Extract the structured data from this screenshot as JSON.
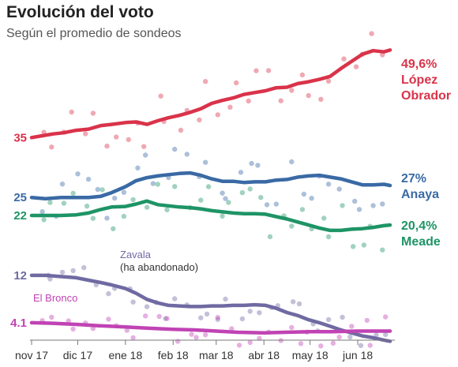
{
  "chart_data": {
    "type": "line",
    "title": "Evolución del voto",
    "subtitle": "Según el promedio de sondeos",
    "x_ticks": [
      "nov 17",
      "dic 17",
      "ene 18",
      "feb 18",
      "mar 18",
      "abr 18",
      "may 18",
      "jun 18"
    ],
    "x_domain": [
      "2017-11-01",
      "2018-06-22"
    ],
    "y_domain": [
      0,
      54
    ],
    "grid": false,
    "series": [
      {
        "name": "López Obrador",
        "color": "#d9334a",
        "start_label": "35",
        "end_value_label": "49,6%",
        "end_name_lines": [
          "López",
          "Obrador"
        ],
        "x": [
          "2017-11-01",
          "2017-11-08",
          "2017-11-15",
          "2017-11-22",
          "2017-11-30",
          "2017-12-08",
          "2017-12-16",
          "2017-12-23",
          "2018-01-01",
          "2018-01-08",
          "2018-01-15",
          "2018-01-22",
          "2018-01-29",
          "2018-02-05",
          "2018-02-12",
          "2018-02-19",
          "2018-02-26",
          "2018-03-05",
          "2018-03-12",
          "2018-03-19",
          "2018-03-26",
          "2018-04-02",
          "2018-04-09",
          "2018-04-16",
          "2018-04-23",
          "2018-04-30",
          "2018-05-07",
          "2018-05-14",
          "2018-05-21",
          "2018-05-28",
          "2018-06-04",
          "2018-06-11",
          "2018-06-18",
          "2018-06-22"
        ],
        "values": [
          35,
          35.3,
          35.6,
          35.8,
          36.2,
          36.4,
          37,
          37.2,
          37.5,
          37.6,
          37.2,
          37.8,
          38.3,
          38.7,
          39.2,
          39.8,
          40.7,
          41.2,
          41.6,
          42.2,
          42.5,
          42.8,
          43.3,
          43.4,
          44,
          44.3,
          44.7,
          45.2,
          46.5,
          47.7,
          48.9,
          49.5,
          49.3,
          49.6
        ]
      },
      {
        "name": "Anaya",
        "color": "#3a6aa5",
        "start_label": "25",
        "end_value_label": "27%",
        "end_name_lines": [
          "Anaya"
        ],
        "x": [
          "2017-11-01",
          "2017-11-10",
          "2017-11-20",
          "2017-11-30",
          "2017-12-08",
          "2017-12-16",
          "2017-12-23",
          "2018-01-01",
          "2018-01-08",
          "2018-01-15",
          "2018-01-22",
          "2018-01-29",
          "2018-02-05",
          "2018-02-12",
          "2018-02-19",
          "2018-02-26",
          "2018-03-05",
          "2018-03-12",
          "2018-03-19",
          "2018-03-26",
          "2018-04-02",
          "2018-04-09",
          "2018-04-16",
          "2018-04-23",
          "2018-04-30",
          "2018-05-07",
          "2018-05-14",
          "2018-05-21",
          "2018-05-28",
          "2018-06-04",
          "2018-06-11",
          "2018-06-18",
          "2018-06-22"
        ],
        "values": [
          25,
          24.8,
          25,
          25,
          25,
          25.2,
          25.8,
          26.8,
          27.8,
          28.3,
          28.6,
          28.8,
          29,
          29.1,
          28.7,
          28.1,
          27.7,
          27.7,
          27.5,
          27.6,
          27.6,
          27.9,
          28,
          28.4,
          28.6,
          28.7,
          28.4,
          28.1,
          27.6,
          27.1,
          27.1,
          27.2,
          27
        ]
      },
      {
        "name": "Meade",
        "color": "#1e9466",
        "start_label": "22",
        "end_value_label": "20,4%",
        "end_name_lines": [
          "Meade"
        ],
        "x": [
          "2017-11-01",
          "2017-11-10",
          "2017-11-20",
          "2017-11-30",
          "2017-12-08",
          "2017-12-16",
          "2017-12-23",
          "2018-01-01",
          "2018-01-08",
          "2018-01-15",
          "2018-01-22",
          "2018-01-29",
          "2018-02-05",
          "2018-02-12",
          "2018-02-19",
          "2018-02-26",
          "2018-03-05",
          "2018-03-12",
          "2018-03-19",
          "2018-03-26",
          "2018-04-02",
          "2018-04-09",
          "2018-04-16",
          "2018-04-23",
          "2018-04-30",
          "2018-05-07",
          "2018-05-14",
          "2018-05-21",
          "2018-05-28",
          "2018-06-04",
          "2018-06-11",
          "2018-06-18",
          "2018-06-22"
        ],
        "values": [
          22,
          22,
          22,
          22.1,
          22.4,
          23,
          23.4,
          23.5,
          23.9,
          24.4,
          23.8,
          23.6,
          23.4,
          23.3,
          23.1,
          22.8,
          22.6,
          22.4,
          22.3,
          22.3,
          22.2,
          21.8,
          21.4,
          20.9,
          20.4,
          19.9,
          19.5,
          19.5,
          19.7,
          19.8,
          20,
          20.3,
          20.4
        ]
      },
      {
        "name": "Zavala",
        "color": "#6f6aa2",
        "start_label": "12",
        "annotation_lines": [
          "Zavala",
          "(ha abandonado)"
        ],
        "x": [
          "2017-11-01",
          "2017-11-10",
          "2017-11-20",
          "2017-11-30",
          "2017-12-08",
          "2017-12-16",
          "2017-12-23",
          "2018-01-01",
          "2018-01-08",
          "2018-01-15",
          "2018-01-22",
          "2018-01-29",
          "2018-02-05",
          "2018-02-12",
          "2018-02-19",
          "2018-02-26",
          "2018-03-05",
          "2018-03-12",
          "2018-03-19",
          "2018-03-26",
          "2018-04-02",
          "2018-04-09",
          "2018-04-16",
          "2018-04-23",
          "2018-04-30",
          "2018-05-07",
          "2018-05-14",
          "2018-05-21",
          "2018-05-28",
          "2018-06-04",
          "2018-06-11",
          "2018-06-18",
          "2018-06-22"
        ],
        "values": [
          12,
          12,
          11.8,
          11.6,
          11.2,
          10.8,
          10.4,
          9.8,
          9,
          8,
          7.4,
          7,
          6.9,
          6.8,
          6.8,
          6.9,
          6.9,
          7,
          7,
          7.1,
          7,
          6.5,
          5.8,
          5.3,
          4.6,
          4.1,
          3.5,
          2.9,
          2.4,
          1.9,
          1.6,
          1.2,
          1
        ]
      },
      {
        "name": "El Bronco",
        "color": "#c043b4",
        "start_label": "4.1",
        "annotation_lines": [
          "El Bronco"
        ],
        "x": [
          "2017-11-01",
          "2017-11-15",
          "2017-12-01",
          "2017-12-15",
          "2018-01-01",
          "2018-01-15",
          "2018-02-01",
          "2018-02-15",
          "2018-03-01",
          "2018-03-15",
          "2018-04-01",
          "2018-04-15",
          "2018-05-01",
          "2018-05-15",
          "2018-06-01",
          "2018-06-15",
          "2018-06-22"
        ],
        "values": [
          4.1,
          4,
          3.8,
          3.6,
          3.4,
          3.2,
          3,
          2.9,
          2.7,
          2.5,
          2.4,
          2.5,
          2.6,
          2.6,
          2.7,
          2.7,
          2.7
        ]
      }
    ]
  }
}
